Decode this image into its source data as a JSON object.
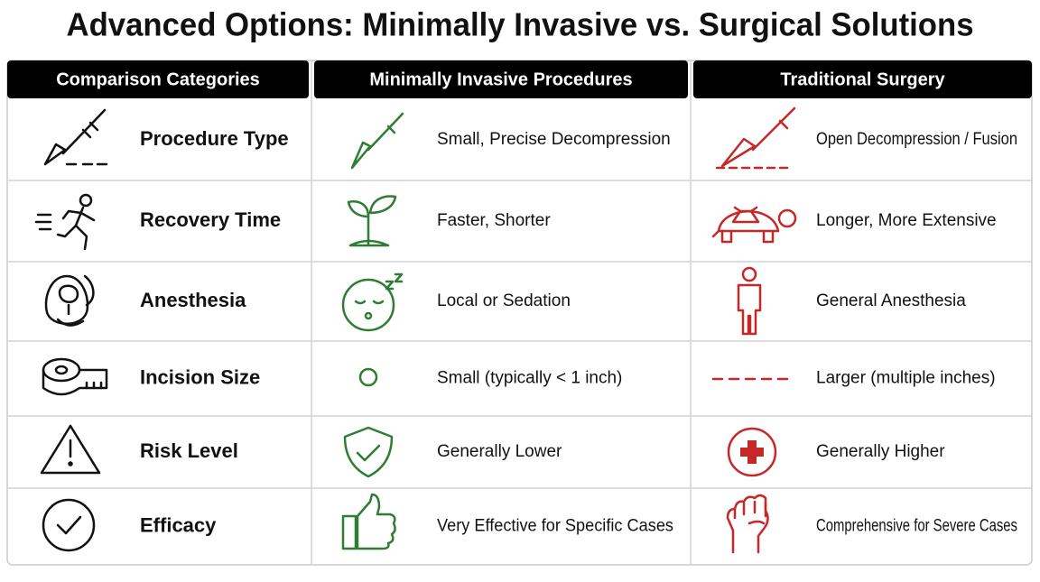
{
  "title": "Advanced Options: Minimally Invasive vs. Surgical Solutions",
  "table": {
    "headers": [
      "Comparison Categories",
      "Minimally Invasive Procedures",
      "Traditional Surgery"
    ],
    "rows": [
      [
        "Procedure Type",
        "Small, Precise Decompression",
        "Open Decompression / Fusion"
      ],
      [
        "Recovery Time",
        "Faster, Shorter",
        "Longer, More Extensive"
      ],
      [
        "Anesthesia",
        "Local or Sedation",
        "General Anesthesia"
      ],
      [
        "Incision Size",
        "Small (typically < 1 inch)",
        "Larger (multiple inches)"
      ],
      [
        "Risk Level",
        "Generally Lower",
        "Generally Higher"
      ],
      [
        "Efficacy",
        "Very Effective for Specific Cases",
        "Comprehensive for Severe Cases"
      ]
    ]
  }
}
